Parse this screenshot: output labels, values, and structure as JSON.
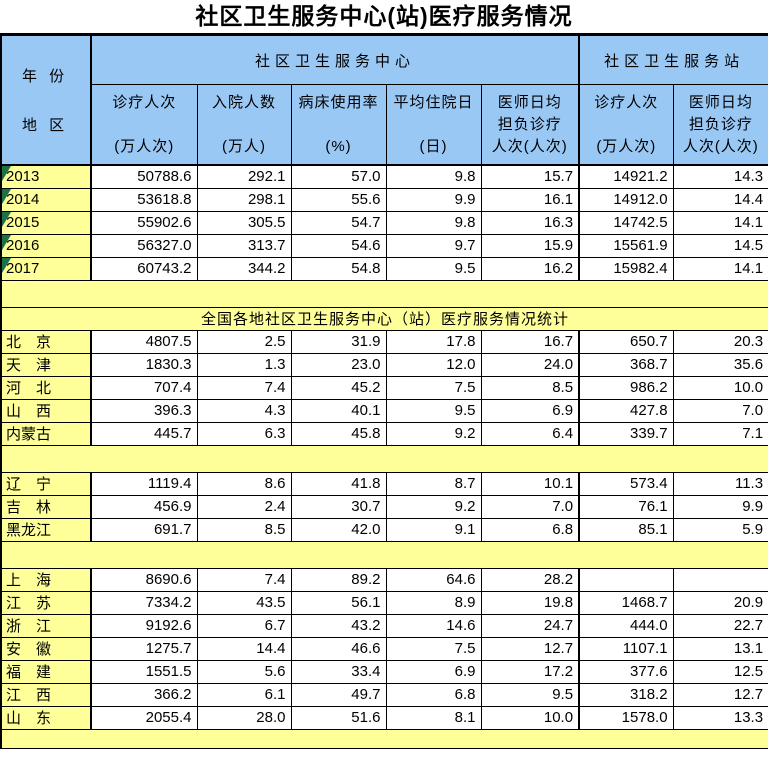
{
  "title": "社区卫生服务中心(站)医疗服务情况",
  "colors": {
    "header_blue": "#9AC8F5",
    "band_yellow": "#FFFF99",
    "grid_black": "#000000",
    "error_triangle_green": "#1E7145"
  },
  "table": {
    "corner": {
      "top": "年 份",
      "bottom": "地 区"
    },
    "groups": [
      {
        "label": "社区卫生服务中心"
      },
      {
        "label": "社区卫生服务站"
      }
    ],
    "columns": [
      {
        "lines": [
          "诊疗人次",
          "(万人次)"
        ]
      },
      {
        "lines": [
          "入院人数",
          "(万人)"
        ]
      },
      {
        "lines": [
          "病床使用率",
          "(%)"
        ]
      },
      {
        "lines": [
          "平均住院日",
          "(日)"
        ]
      },
      {
        "lines": [
          "医师日均",
          "担负诊疗",
          "人次(人次)"
        ]
      },
      {
        "lines": [
          "诊疗人次",
          "(万人次)"
        ]
      },
      {
        "lines": [
          "医师日均",
          "担负诊疗",
          "人次(人次)"
        ]
      }
    ],
    "sections": [
      {
        "type": "rows",
        "rows": [
          {
            "label": "2013",
            "error_marker": true,
            "values": [
              "50788.6",
              "292.1",
              "57.0",
              "9.8",
              "15.7",
              "14921.2",
              "14.3"
            ]
          },
          {
            "label": "2014",
            "error_marker": true,
            "values": [
              "53618.8",
              "298.1",
              "55.6",
              "9.9",
              "16.1",
              "14912.0",
              "14.4"
            ]
          },
          {
            "label": "2015",
            "error_marker": true,
            "values": [
              "55902.6",
              "305.5",
              "54.7",
              "9.8",
              "16.3",
              "14742.5",
              "14.1"
            ]
          },
          {
            "label": "2016",
            "error_marker": true,
            "values": [
              "56327.0",
              "313.7",
              "54.6",
              "9.7",
              "15.9",
              "15561.9",
              "14.5"
            ]
          },
          {
            "label": "2017",
            "error_marker": true,
            "values": [
              "60743.2",
              "344.2",
              "54.8",
              "9.5",
              "16.2",
              "15982.4",
              "14.1"
            ]
          }
        ]
      },
      {
        "type": "band",
        "height": 27
      },
      {
        "type": "section_title",
        "label": "全国各地社区卫生服务中心（站）医疗服务情况统计"
      },
      {
        "type": "rows",
        "rows": [
          {
            "label": "北　京",
            "values": [
              "4807.5",
              "2.5",
              "31.9",
              "17.8",
              "16.7",
              "650.7",
              "20.3"
            ]
          },
          {
            "label": "天　津",
            "values": [
              "1830.3",
              "1.3",
              "23.0",
              "12.0",
              "24.0",
              "368.7",
              "35.6"
            ]
          },
          {
            "label": "河　北",
            "values": [
              "707.4",
              "7.4",
              "45.2",
              "7.5",
              "8.5",
              "986.2",
              "10.0"
            ]
          },
          {
            "label": "山　西",
            "values": [
              "396.3",
              "4.3",
              "40.1",
              "9.5",
              "6.9",
              "427.8",
              "7.0"
            ]
          },
          {
            "label": "内蒙古",
            "values": [
              "445.7",
              "6.3",
              "45.8",
              "9.2",
              "6.4",
              "339.7",
              "7.1"
            ]
          }
        ]
      },
      {
        "type": "band",
        "height": 27
      },
      {
        "type": "rows",
        "rows": [
          {
            "label": "辽　宁",
            "values": [
              "1119.4",
              "8.6",
              "41.8",
              "8.7",
              "10.1",
              "573.4",
              "11.3"
            ]
          },
          {
            "label": "吉　林",
            "values": [
              "456.9",
              "2.4",
              "30.7",
              "9.2",
              "7.0",
              "76.1",
              "9.9"
            ]
          },
          {
            "label": "黑龙江",
            "values": [
              "691.7",
              "8.5",
              "42.0",
              "9.1",
              "6.8",
              "85.1",
              "5.9"
            ]
          }
        ]
      },
      {
        "type": "band",
        "height": 27
      },
      {
        "type": "rows",
        "rows": [
          {
            "label": "上　海",
            "values": [
              "8690.6",
              "7.4",
              "89.2",
              "64.6",
              "28.2",
              "",
              ""
            ]
          },
          {
            "label": "江　苏",
            "values": [
              "7334.2",
              "43.5",
              "56.1",
              "8.9",
              "19.8",
              "1468.7",
              "20.9"
            ]
          },
          {
            "label": "浙　江",
            "values": [
              "9192.6",
              "6.7",
              "43.2",
              "14.6",
              "24.7",
              "444.0",
              "22.7"
            ]
          },
          {
            "label": "安　徽",
            "values": [
              "1275.7",
              "14.4",
              "46.6",
              "7.5",
              "12.7",
              "1107.1",
              "13.1"
            ]
          },
          {
            "label": "福　建",
            "values": [
              "1551.5",
              "5.6",
              "33.4",
              "6.9",
              "17.2",
              "377.6",
              "12.5"
            ]
          },
          {
            "label": "江　西",
            "values": [
              "366.2",
              "6.1",
              "49.7",
              "6.8",
              "9.5",
              "318.2",
              "12.7"
            ]
          },
          {
            "label": "山　东",
            "values": [
              "2055.4",
              "28.0",
              "51.6",
              "8.1",
              "10.0",
              "1578.0",
              "13.3"
            ]
          }
        ]
      },
      {
        "type": "band",
        "height": 19
      }
    ]
  }
}
